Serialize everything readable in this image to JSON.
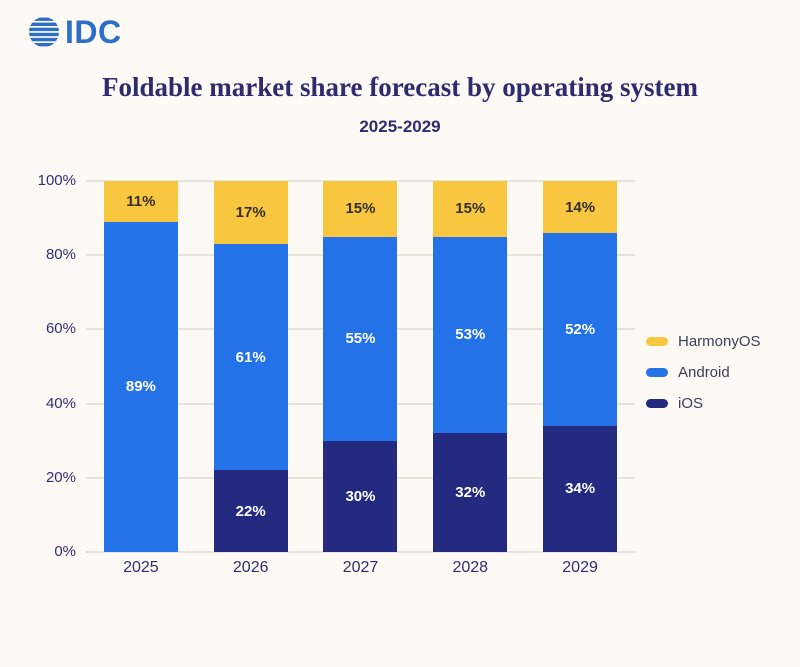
{
  "page": {
    "background": "#FDFAF5"
  },
  "logo": {
    "text": "IDC",
    "color": "#2D6EC6"
  },
  "header": {
    "title": "Foldable market share forecast by operating system",
    "subtitle": "2025-2029",
    "color": "#2F2B6E"
  },
  "chart_data": {
    "type": "bar",
    "stacked": true,
    "title": "Foldable market share forecast by operating system",
    "subtitle": "2025-2029",
    "categories": [
      "2025",
      "2026",
      "2027",
      "2028",
      "2029"
    ],
    "series": [
      {
        "name": "iOS",
        "color": "#252A81",
        "label_color": "#FFFFFF",
        "values": [
          0,
          22,
          30,
          32,
          34
        ]
      },
      {
        "name": "Android",
        "color": "#2472E8",
        "label_color": "#FFFFFF",
        "values": [
          89,
          61,
          55,
          53,
          52
        ]
      },
      {
        "name": "HarmonyOS",
        "color": "#F8C63F",
        "label_color": "#33302B",
        "values": [
          11,
          17,
          15,
          15,
          14
        ]
      }
    ],
    "value_suffix": "%",
    "y_ticks": [
      "0%",
      "20%",
      "40%",
      "60%",
      "80%",
      "100%"
    ],
    "ylim": [
      0,
      100
    ],
    "grid": "horizontal",
    "gridline_color": "#E7E4DC",
    "legend_position": "right",
    "legend_order": [
      "HarmonyOS",
      "Android",
      "iOS"
    ]
  }
}
